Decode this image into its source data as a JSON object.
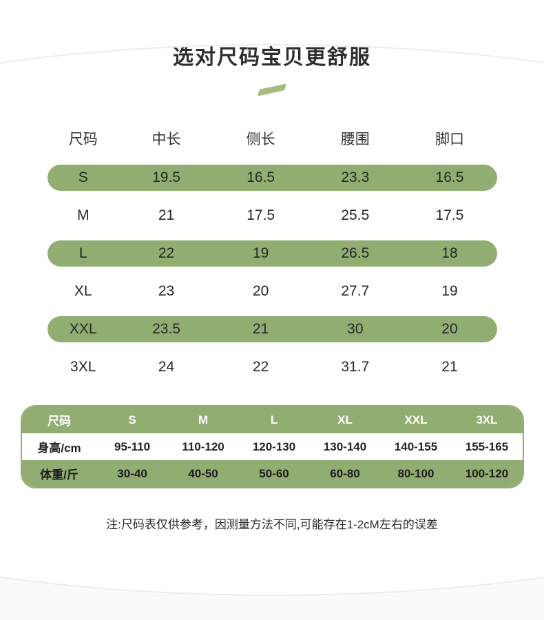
{
  "colors": {
    "green": "#92ad72",
    "accent_green": "#a4bc82",
    "arc_gray": "#ececec"
  },
  "header": {
    "title": "选对尺码宝贝更舒服"
  },
  "size_table": {
    "headers": [
      "尺码",
      "中长",
      "侧长",
      "腰围",
      "脚口"
    ],
    "rows": [
      {
        "size": "S",
        "values": [
          "19.5",
          "16.5",
          "23.3",
          "16.5"
        ],
        "highlight": true
      },
      {
        "size": "M",
        "values": [
          "21",
          "17.5",
          "25.5",
          "17.5"
        ],
        "highlight": false
      },
      {
        "size": "L",
        "values": [
          "22",
          "19",
          "26.5",
          "18"
        ],
        "highlight": true
      },
      {
        "size": "XL",
        "values": [
          "23",
          "20",
          "27.7",
          "19"
        ],
        "highlight": false
      },
      {
        "size": "XXL",
        "values": [
          "23.5",
          "21",
          "30",
          "20"
        ],
        "highlight": true
      },
      {
        "size": "3XL",
        "values": [
          "24",
          "22",
          "31.7",
          "21"
        ],
        "highlight": false
      }
    ]
  },
  "fit_table": {
    "rows": [
      {
        "label": "尺码",
        "values": [
          "S",
          "M",
          "L",
          "XL",
          "XXL",
          "3XL"
        ]
      },
      {
        "label": "身高/cm",
        "values": [
          "95-110",
          "110-120",
          "120-130",
          "130-140",
          "140-155",
          "155-165"
        ]
      },
      {
        "label": "体重/斤",
        "values": [
          "30-40",
          "40-50",
          "50-60",
          "60-80",
          "80-100",
          "100-120"
        ]
      }
    ]
  },
  "footer": {
    "note": "注:尺码表仅供参考，因测量方法不同,可能存在1-2cM左右的误差"
  }
}
